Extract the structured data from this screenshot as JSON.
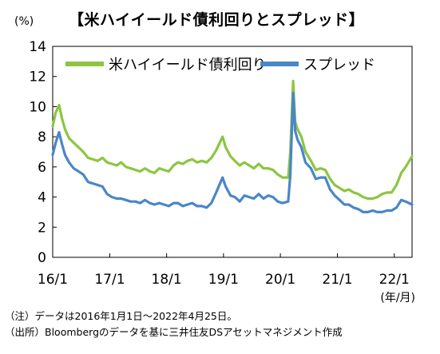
{
  "chart_data": {
    "type": "line",
    "title": "【米ハイイールド債利回りとスプレッド】",
    "y_unit": "(%)",
    "x_unit": "(年/月)",
    "ylim": [
      0,
      14
    ],
    "yticks": [
      0,
      2,
      4,
      6,
      8,
      10,
      12,
      14
    ],
    "x_ticks": [
      "16/1",
      "17/1",
      "18/1",
      "19/1",
      "20/1",
      "21/1",
      "22/1"
    ],
    "x_range": [
      "2016-01-01",
      "2022-04-25"
    ],
    "grid": false,
    "legend_position": "top",
    "series": [
      {
        "name": "米ハイイールド債利回り",
        "color": "#8cc63f",
        "points": [
          [
            "2016-01-01",
            8.7
          ],
          [
            "2016-01-20",
            9.6
          ],
          [
            "2016-02-11",
            10.1
          ],
          [
            "2016-03-01",
            9.2
          ],
          [
            "2016-03-20",
            8.5
          ],
          [
            "2016-04-15",
            7.9
          ],
          [
            "2016-05-15",
            7.6
          ],
          [
            "2016-06-15",
            7.3
          ],
          [
            "2016-07-15",
            7.0
          ],
          [
            "2016-08-15",
            6.6
          ],
          [
            "2016-09-15",
            6.5
          ],
          [
            "2016-10-15",
            6.4
          ],
          [
            "2016-11-15",
            6.6
          ],
          [
            "2016-12-15",
            6.3
          ],
          [
            "2017-01-15",
            6.2
          ],
          [
            "2017-02-15",
            6.1
          ],
          [
            "2017-03-15",
            6.3
          ],
          [
            "2017-04-15",
            6.0
          ],
          [
            "2017-05-15",
            5.9
          ],
          [
            "2017-06-15",
            5.8
          ],
          [
            "2017-07-15",
            5.7
          ],
          [
            "2017-08-15",
            5.9
          ],
          [
            "2017-09-15",
            5.7
          ],
          [
            "2017-10-15",
            5.6
          ],
          [
            "2017-11-15",
            5.9
          ],
          [
            "2017-12-15",
            5.8
          ],
          [
            "2018-01-15",
            5.7
          ],
          [
            "2018-02-15",
            6.1
          ],
          [
            "2018-03-15",
            6.3
          ],
          [
            "2018-04-15",
            6.2
          ],
          [
            "2018-05-15",
            6.4
          ],
          [
            "2018-06-15",
            6.5
          ],
          [
            "2018-07-15",
            6.3
          ],
          [
            "2018-08-15",
            6.4
          ],
          [
            "2018-09-15",
            6.3
          ],
          [
            "2018-10-15",
            6.6
          ],
          [
            "2018-11-15",
            7.1
          ],
          [
            "2018-12-26",
            8.0
          ],
          [
            "2019-01-15",
            7.3
          ],
          [
            "2019-02-15",
            6.7
          ],
          [
            "2019-03-15",
            6.4
          ],
          [
            "2019-04-15",
            6.1
          ],
          [
            "2019-05-15",
            6.3
          ],
          [
            "2019-06-15",
            6.1
          ],
          [
            "2019-07-15",
            5.9
          ],
          [
            "2019-08-15",
            6.2
          ],
          [
            "2019-09-15",
            5.9
          ],
          [
            "2019-10-15",
            5.9
          ],
          [
            "2019-11-15",
            5.8
          ],
          [
            "2019-12-15",
            5.5
          ],
          [
            "2020-01-15",
            5.3
          ],
          [
            "2020-02-20",
            5.3
          ],
          [
            "2020-03-05",
            7.0
          ],
          [
            "2020-03-23",
            11.7
          ],
          [
            "2020-04-05",
            9.0
          ],
          [
            "2020-04-20",
            8.5
          ],
          [
            "2020-05-15",
            8.0
          ],
          [
            "2020-06-10",
            7.0
          ],
          [
            "2020-07-15",
            6.4
          ],
          [
            "2020-08-15",
            5.8
          ],
          [
            "2020-09-15",
            5.9
          ],
          [
            "2020-10-15",
            5.8
          ],
          [
            "2020-11-15",
            5.2
          ],
          [
            "2020-12-15",
            4.8
          ],
          [
            "2021-01-15",
            4.6
          ],
          [
            "2021-02-15",
            4.4
          ],
          [
            "2021-03-15",
            4.5
          ],
          [
            "2021-04-15",
            4.3
          ],
          [
            "2021-05-15",
            4.2
          ],
          [
            "2021-06-15",
            4.0
          ],
          [
            "2021-07-15",
            3.9
          ],
          [
            "2021-08-15",
            3.9
          ],
          [
            "2021-09-15",
            4.0
          ],
          [
            "2021-10-15",
            4.2
          ],
          [
            "2021-11-15",
            4.3
          ],
          [
            "2021-12-15",
            4.3
          ],
          [
            "2022-01-15",
            4.8
          ],
          [
            "2022-02-15",
            5.6
          ],
          [
            "2022-03-15",
            6.0
          ],
          [
            "2022-04-25",
            6.7
          ]
        ]
      },
      {
        "name": "スプレッド",
        "color": "#4a86c8",
        "points": [
          [
            "2016-01-01",
            6.8
          ],
          [
            "2016-01-20",
            7.6
          ],
          [
            "2016-02-11",
            8.3
          ],
          [
            "2016-03-01",
            7.5
          ],
          [
            "2016-03-20",
            6.8
          ],
          [
            "2016-04-15",
            6.3
          ],
          [
            "2016-05-15",
            5.9
          ],
          [
            "2016-06-15",
            5.7
          ],
          [
            "2016-07-15",
            5.5
          ],
          [
            "2016-08-15",
            5.0
          ],
          [
            "2016-09-15",
            4.9
          ],
          [
            "2016-10-15",
            4.8
          ],
          [
            "2016-11-15",
            4.7
          ],
          [
            "2016-12-15",
            4.2
          ],
          [
            "2017-01-15",
            4.0
          ],
          [
            "2017-02-15",
            3.9
          ],
          [
            "2017-03-15",
            3.9
          ],
          [
            "2017-04-15",
            3.8
          ],
          [
            "2017-05-15",
            3.7
          ],
          [
            "2017-06-15",
            3.7
          ],
          [
            "2017-07-15",
            3.6
          ],
          [
            "2017-08-15",
            3.8
          ],
          [
            "2017-09-15",
            3.6
          ],
          [
            "2017-10-15",
            3.5
          ],
          [
            "2017-11-15",
            3.6
          ],
          [
            "2017-12-15",
            3.5
          ],
          [
            "2018-01-15",
            3.4
          ],
          [
            "2018-02-15",
            3.6
          ],
          [
            "2018-03-15",
            3.6
          ],
          [
            "2018-04-15",
            3.4
          ],
          [
            "2018-05-15",
            3.5
          ],
          [
            "2018-06-15",
            3.6
          ],
          [
            "2018-07-15",
            3.4
          ],
          [
            "2018-08-15",
            3.4
          ],
          [
            "2018-09-15",
            3.3
          ],
          [
            "2018-10-15",
            3.6
          ],
          [
            "2018-11-15",
            4.3
          ],
          [
            "2018-12-26",
            5.3
          ],
          [
            "2019-01-15",
            4.7
          ],
          [
            "2019-02-15",
            4.1
          ],
          [
            "2019-03-15",
            4.0
          ],
          [
            "2019-04-15",
            3.7
          ],
          [
            "2019-05-15",
            4.1
          ],
          [
            "2019-06-15",
            4.0
          ],
          [
            "2019-07-15",
            3.9
          ],
          [
            "2019-08-15",
            4.2
          ],
          [
            "2019-09-15",
            3.9
          ],
          [
            "2019-10-15",
            4.1
          ],
          [
            "2019-11-15",
            4.0
          ],
          [
            "2019-12-15",
            3.7
          ],
          [
            "2020-01-15",
            3.6
          ],
          [
            "2020-02-20",
            3.7
          ],
          [
            "2020-03-05",
            5.5
          ],
          [
            "2020-03-23",
            10.9
          ],
          [
            "2020-04-05",
            8.4
          ],
          [
            "2020-04-20",
            7.8
          ],
          [
            "2020-05-15",
            7.3
          ],
          [
            "2020-06-10",
            6.3
          ],
          [
            "2020-07-15",
            5.9
          ],
          [
            "2020-08-15",
            5.2
          ],
          [
            "2020-09-15",
            5.3
          ],
          [
            "2020-10-15",
            5.3
          ],
          [
            "2020-11-15",
            4.5
          ],
          [
            "2020-12-15",
            4.1
          ],
          [
            "2021-01-15",
            3.8
          ],
          [
            "2021-02-15",
            3.5
          ],
          [
            "2021-03-15",
            3.5
          ],
          [
            "2021-04-15",
            3.3
          ],
          [
            "2021-05-15",
            3.2
          ],
          [
            "2021-06-15",
            3.0
          ],
          [
            "2021-07-15",
            3.0
          ],
          [
            "2021-08-15",
            3.1
          ],
          [
            "2021-09-15",
            3.0
          ],
          [
            "2021-10-15",
            3.0
          ],
          [
            "2021-11-15",
            3.1
          ],
          [
            "2021-12-15",
            3.1
          ],
          [
            "2022-01-15",
            3.3
          ],
          [
            "2022-02-15",
            3.8
          ],
          [
            "2022-03-15",
            3.7
          ],
          [
            "2022-04-25",
            3.5
          ]
        ]
      }
    ]
  },
  "notes": [
    "（注）データは2016年1月1日～2022年4月25日。",
    "（出所）Bloombergのデータを基に三井住友DSアセットマネジメント作成"
  ]
}
